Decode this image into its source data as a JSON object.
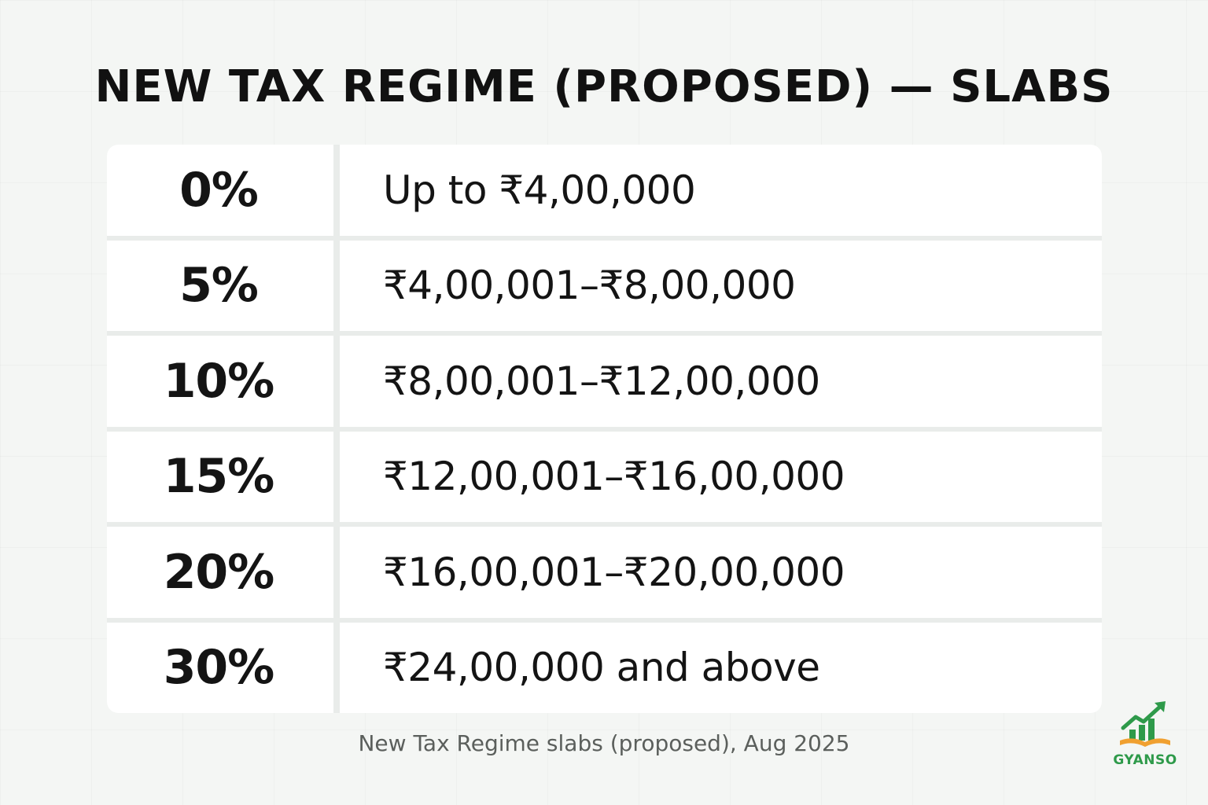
{
  "title": "NEW TAX REGIME (PROPOSED) — SLABS",
  "slabs": [
    {
      "rate": "0%",
      "range": "Up to ₹4,00,000"
    },
    {
      "rate": "5%",
      "range": "₹4,00,001–₹8,00,000"
    },
    {
      "rate": "10%",
      "range": "₹8,00,001–₹12,00,000"
    },
    {
      "rate": "15%",
      "range": "₹12,00,001–₹16,00,000"
    },
    {
      "rate": "20%",
      "range": "₹16,00,001–₹20,00,000"
    },
    {
      "rate": "30%",
      "range": "₹24,00,000 and above"
    }
  ],
  "caption": "New Tax Regime slabs (proposed), Aug 2025",
  "logo": {
    "text": "GYANSO",
    "colors": {
      "green": "#2e9a4a",
      "orange": "#f0a030"
    }
  },
  "colors": {
    "background": "#f4f6f4",
    "cell": "#ffffff",
    "text": "#141414",
    "caption": "#5b5f5c"
  }
}
